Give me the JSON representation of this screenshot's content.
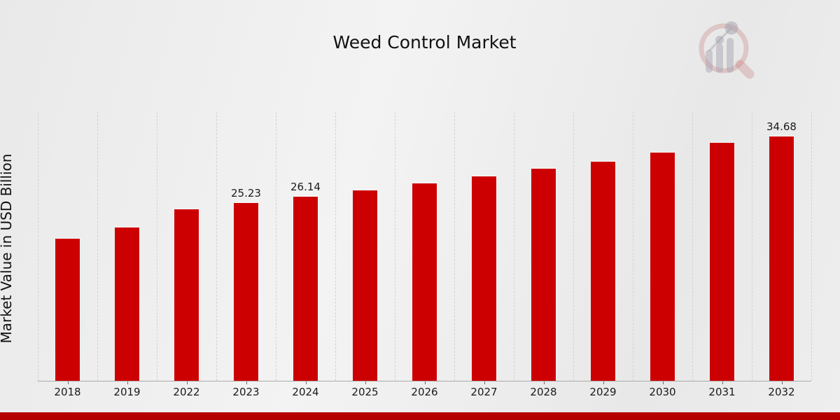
{
  "page": {
    "title": "Weed Control Market"
  },
  "branding": {
    "logo_icon": "magnifier-bar-chart-watermark-icon"
  },
  "chart_data": {
    "type": "bar",
    "title": "Weed Control Market",
    "xlabel": "",
    "ylabel": "Market Value in USD Billion",
    "categories": [
      "2018",
      "2019",
      "2022",
      "2023",
      "2024",
      "2025",
      "2026",
      "2027",
      "2028",
      "2029",
      "2030",
      "2031",
      "2032"
    ],
    "values": [
      20.21,
      21.82,
      24.33,
      25.23,
      26.14,
      27.04,
      28.05,
      29.05,
      30.16,
      31.17,
      32.47,
      33.78,
      34.68
    ],
    "data_labels": [
      "",
      "",
      "",
      "25.23",
      "26.14",
      "",
      "",
      "",
      "",
      "",
      "",
      "",
      "34.68"
    ],
    "ylim": [
      0,
      38.2
    ],
    "y_axis_ticks_visible": false,
    "grid": "vertical-dashed",
    "legend_position": "none",
    "colors": {
      "bar": "#cc0000",
      "bottom_strip": "#b50000",
      "gridline": "#d2d2d2",
      "axis_line": "#ababab",
      "text": "#1a1a1a"
    }
  }
}
